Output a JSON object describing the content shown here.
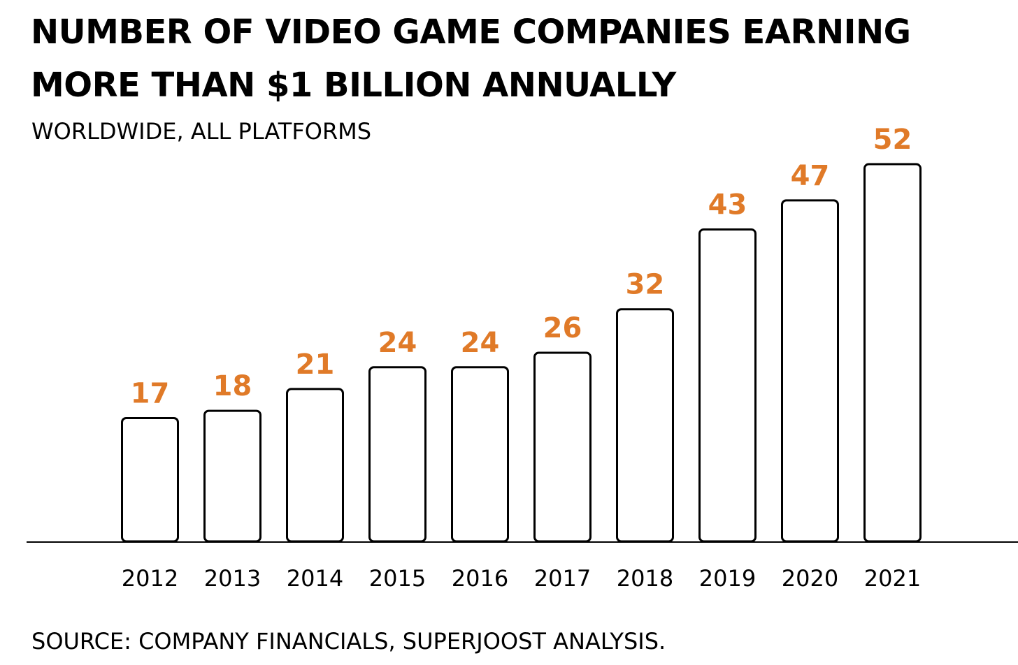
{
  "chart_data": {
    "type": "bar",
    "title_lines": [
      "NUMBER OF VIDEO GAME COMPANIES EARNING",
      "MORE THAN $1 BILLION ANNUALLY"
    ],
    "subtitle": "WORLDWIDE, ALL PLATFORMS",
    "source": "SOURCE: COMPANY FINANCIALS, SUPERJOOST ANALYSIS.",
    "categories": [
      "2012",
      "2013",
      "2014",
      "2015",
      "2016",
      "2017",
      "2018",
      "2019",
      "2020",
      "2021"
    ],
    "values": [
      17,
      18,
      21,
      24,
      24,
      26,
      32,
      43,
      47,
      52
    ],
    "data_labels": true,
    "ylim": [
      0,
      52
    ],
    "grid": false,
    "legend": "none",
    "colors": {
      "bar_fill": "#ffffff",
      "bar_stroke": "#000000",
      "value_label": "#e07a28",
      "axis": "#000000"
    }
  }
}
